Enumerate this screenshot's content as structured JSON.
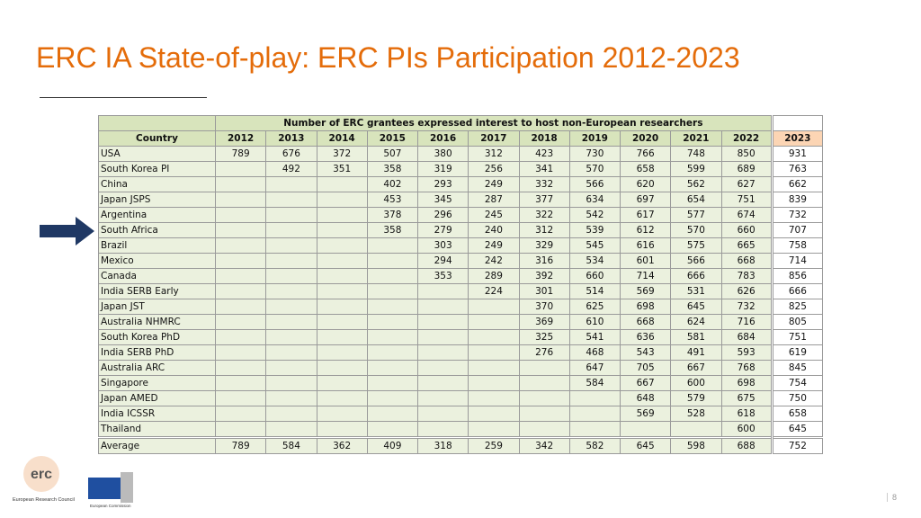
{
  "header": {
    "title": "ERC IA State-of-play: ERC PIs Participation 2012-2023"
  },
  "table": {
    "caption": "Number of ERC grantees expressed interest to host non-European researchers",
    "columns": [
      "Country",
      2012,
      2013,
      2014,
      2015,
      2016,
      2017,
      2018,
      2019,
      2020,
      2021,
      2022,
      2023
    ],
    "rows": [
      [
        "USA",
        789,
        676,
        372,
        507,
        380,
        312,
        423,
        730,
        766,
        748,
        850,
        931
      ],
      [
        "South Korea PI",
        null,
        492,
        351,
        358,
        319,
        256,
        341,
        570,
        658,
        599,
        689,
        763
      ],
      [
        "China",
        null,
        null,
        null,
        402,
        293,
        249,
        332,
        566,
        620,
        562,
        627,
        662
      ],
      [
        "Japan JSPS",
        null,
        null,
        null,
        453,
        345,
        287,
        377,
        634,
        697,
        654,
        751,
        839
      ],
      [
        "Argentina",
        null,
        null,
        null,
        378,
        296,
        245,
        322,
        542,
        617,
        577,
        674,
        732
      ],
      [
        "South Africa",
        null,
        null,
        null,
        358,
        279,
        240,
        312,
        539,
        612,
        570,
        660,
        707
      ],
      [
        "Brazil",
        null,
        null,
        null,
        null,
        303,
        249,
        329,
        545,
        616,
        575,
        665,
        758
      ],
      [
        "Mexico",
        null,
        null,
        null,
        null,
        294,
        242,
        316,
        534,
        601,
        566,
        668,
        714
      ],
      [
        "Canada",
        null,
        null,
        null,
        null,
        353,
        289,
        392,
        660,
        714,
        666,
        783,
        856
      ],
      [
        "India SERB Early",
        null,
        null,
        null,
        null,
        null,
        224,
        301,
        514,
        569,
        531,
        626,
        666
      ],
      [
        "Japan JST",
        null,
        null,
        null,
        null,
        null,
        null,
        370,
        625,
        698,
        645,
        732,
        825
      ],
      [
        "Australia NHMRC",
        null,
        null,
        null,
        null,
        null,
        null,
        369,
        610,
        668,
        624,
        716,
        805
      ],
      [
        "South Korea PhD",
        null,
        null,
        null,
        null,
        null,
        null,
        325,
        541,
        636,
        581,
        684,
        751
      ],
      [
        "India SERB PhD",
        null,
        null,
        null,
        null,
        null,
        null,
        276,
        468,
        543,
        491,
        593,
        619
      ],
      [
        "Australia ARC",
        null,
        null,
        null,
        null,
        null,
        null,
        null,
        647,
        705,
        667,
        768,
        845
      ],
      [
        "Singapore",
        null,
        null,
        null,
        null,
        null,
        null,
        null,
        584,
        667,
        600,
        698,
        754
      ],
      [
        "Japan AMED",
        null,
        null,
        null,
        null,
        null,
        null,
        null,
        null,
        648,
        579,
        675,
        750
      ],
      [
        "India ICSSR",
        null,
        null,
        null,
        null,
        null,
        null,
        null,
        null,
        569,
        528,
        618,
        658
      ],
      [
        "Thailand",
        null,
        null,
        null,
        null,
        null,
        null,
        null,
        null,
        null,
        null,
        600,
        645
      ],
      [
        "Average",
        789,
        584,
        362,
        409,
        318,
        259,
        342,
        582,
        645,
        598,
        688,
        752
      ]
    ]
  },
  "logo": {
    "mark": "erc",
    "org": "European Research Council",
    "commission": "European Commission"
  },
  "page_number": 8
}
